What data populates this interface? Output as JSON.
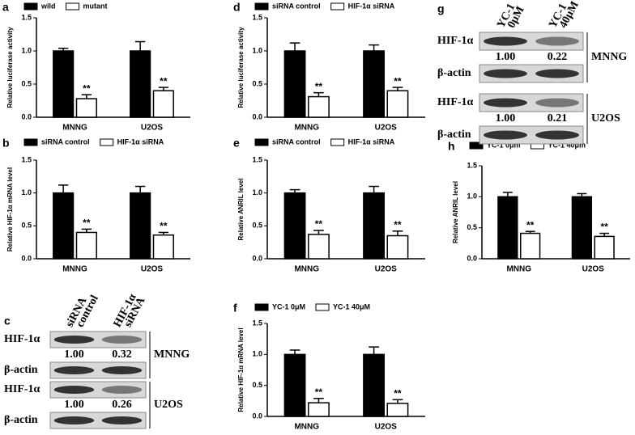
{
  "chart_data": [
    {
      "type": "bar",
      "label": "a",
      "ylabel": "Relative luciferase activity",
      "categories": [
        "MNNG",
        "U2OS"
      ],
      "series": [
        {
          "name": "wild",
          "color": "#000000",
          "values": [
            1.0,
            1.0
          ],
          "errors": [
            0.04,
            0.14
          ]
        },
        {
          "name": "mutant",
          "color": "#ffffff",
          "values": [
            0.28,
            0.4
          ],
          "errors": [
            0.06,
            0.05
          ],
          "annotations": [
            "**",
            "**"
          ]
        }
      ],
      "ylim": [
        0,
        1.5
      ],
      "yticks": [
        {
          "value": 0,
          "label": "0.0"
        },
        {
          "value": 0.5,
          "label": "0.5"
        },
        {
          "value": 1,
          "label": "1.0"
        },
        {
          "value": 1.5,
          "label": "1.5"
        }
      ]
    },
    {
      "type": "bar",
      "label": "b",
      "ylabel": "Relative HIF-1α mRNA level",
      "categories": [
        "MNNG",
        "U2OS"
      ],
      "series": [
        {
          "name": "siRNA control",
          "color": "#000000",
          "values": [
            1.0,
            1.0
          ],
          "errors": [
            0.12,
            0.1
          ]
        },
        {
          "name": "HIF-1α siRNA",
          "color": "#ffffff",
          "values": [
            0.4,
            0.36
          ],
          "errors": [
            0.05,
            0.04
          ],
          "annotations": [
            "**",
            "**"
          ]
        }
      ],
      "ylim": [
        0,
        1.5
      ],
      "yticks": [
        {
          "value": 0,
          "label": "0.0"
        },
        {
          "value": 0.5,
          "label": "0.5"
        },
        {
          "value": 1,
          "label": "1.0"
        },
        {
          "value": 1.5,
          "label": "1.5"
        }
      ]
    },
    {
      "type": "bar",
      "label": "d",
      "ylabel": "Relative luciferase activity",
      "categories": [
        "MNNG",
        "U2OS"
      ],
      "series": [
        {
          "name": "siRNA control",
          "color": "#000000",
          "values": [
            1.0,
            1.0
          ],
          "errors": [
            0.12,
            0.09
          ]
        },
        {
          "name": "HIF-1α siRNA",
          "color": "#ffffff",
          "values": [
            0.31,
            0.4
          ],
          "errors": [
            0.06,
            0.05
          ],
          "annotations": [
            "**",
            "**"
          ]
        }
      ],
      "ylim": [
        0,
        1.5
      ],
      "yticks": [
        {
          "value": 0,
          "label": "0.0"
        },
        {
          "value": 0.5,
          "label": "0.5"
        },
        {
          "value": 1,
          "label": "1.0"
        },
        {
          "value": 1.5,
          "label": "1.5"
        }
      ]
    },
    {
      "type": "bar",
      "label": "e",
      "ylabel": "Relative ANRIL level",
      "categories": [
        "MNNG",
        "U2OS"
      ],
      "series": [
        {
          "name": "siRNA control",
          "color": "#000000",
          "values": [
            1.0,
            1.0
          ],
          "errors": [
            0.05,
            0.1
          ]
        },
        {
          "name": "HIF-1α siRNA",
          "color": "#ffffff",
          "values": [
            0.37,
            0.35
          ],
          "errors": [
            0.06,
            0.07
          ],
          "annotations": [
            "**",
            "**"
          ]
        }
      ],
      "ylim": [
        0,
        1.5
      ],
      "yticks": [
        {
          "value": 0,
          "label": "0.0"
        },
        {
          "value": 0.5,
          "label": "0.5"
        },
        {
          "value": 1,
          "label": "1.0"
        },
        {
          "value": 1.5,
          "label": "1.5"
        }
      ]
    },
    {
      "type": "bar",
      "label": "f",
      "ylabel": "Relative HIF-1α mRNA level",
      "categories": [
        "MNNG",
        "U2OS"
      ],
      "series": [
        {
          "name": "YC-1 0μM",
          "color": "#000000",
          "values": [
            1.0,
            1.0
          ],
          "errors": [
            0.07,
            0.12
          ]
        },
        {
          "name": "YC-1 40μM",
          "color": "#ffffff",
          "values": [
            0.22,
            0.21
          ],
          "errors": [
            0.07,
            0.06
          ],
          "annotations": [
            "**",
            "**"
          ]
        }
      ],
      "ylim": [
        0,
        1.5
      ],
      "yticks": [
        {
          "value": 0,
          "label": "0.0"
        },
        {
          "value": 0.5,
          "label": "0.5"
        },
        {
          "value": 1,
          "label": "1.0"
        },
        {
          "value": 1.5,
          "label": "1.5"
        }
      ]
    },
    {
      "type": "bar",
      "label": "h",
      "ylabel": "Relative ANRIL level",
      "categories": [
        "MNNG",
        "U2OS"
      ],
      "series": [
        {
          "name": "YC-1 0μm",
          "color": "#000000",
          "values": [
            1.0,
            1.0
          ],
          "errors": [
            0.07,
            0.05
          ]
        },
        {
          "name": "YC-1 40μm",
          "color": "#ffffff",
          "values": [
            0.41,
            0.36
          ],
          "errors": [
            0.03,
            0.05
          ],
          "annotations": [
            "**",
            "**"
          ]
        }
      ],
      "ylim": [
        0,
        1.5
      ],
      "yticks": [
        {
          "value": 0,
          "label": "0.0"
        },
        {
          "value": 0.5,
          "label": "0.5"
        },
        {
          "value": 1,
          "label": "1.0"
        },
        {
          "value": 1.5,
          "label": "1.5"
        }
      ]
    }
  ],
  "blots": [
    {
      "label": "c",
      "lanes": [
        [
          "siRNA",
          "control"
        ],
        [
          "HIF-1α",
          "siRNA"
        ]
      ],
      "groups": [
        {
          "name": "MNNG",
          "target": "HIF-1α",
          "control": "β-actin",
          "values": [
            "1.00",
            "0.32"
          ]
        },
        {
          "name": "U2OS",
          "target": "HIF-1α",
          "control": "β-actin",
          "values": [
            "1.00",
            "0.26"
          ]
        }
      ]
    },
    {
      "label": "g",
      "lanes": [
        [
          "YC-1",
          "0μM"
        ],
        [
          "YC-1",
          "40μM"
        ]
      ],
      "groups": [
        {
          "name": "MNNG",
          "target": "HIF-1α",
          "control": "β-actin",
          "values": [
            "1.00",
            "0.22"
          ]
        },
        {
          "name": "U2OS",
          "target": "HIF-1α",
          "control": "β-actin",
          "values": [
            "1.00",
            "0.21"
          ]
        }
      ]
    }
  ]
}
